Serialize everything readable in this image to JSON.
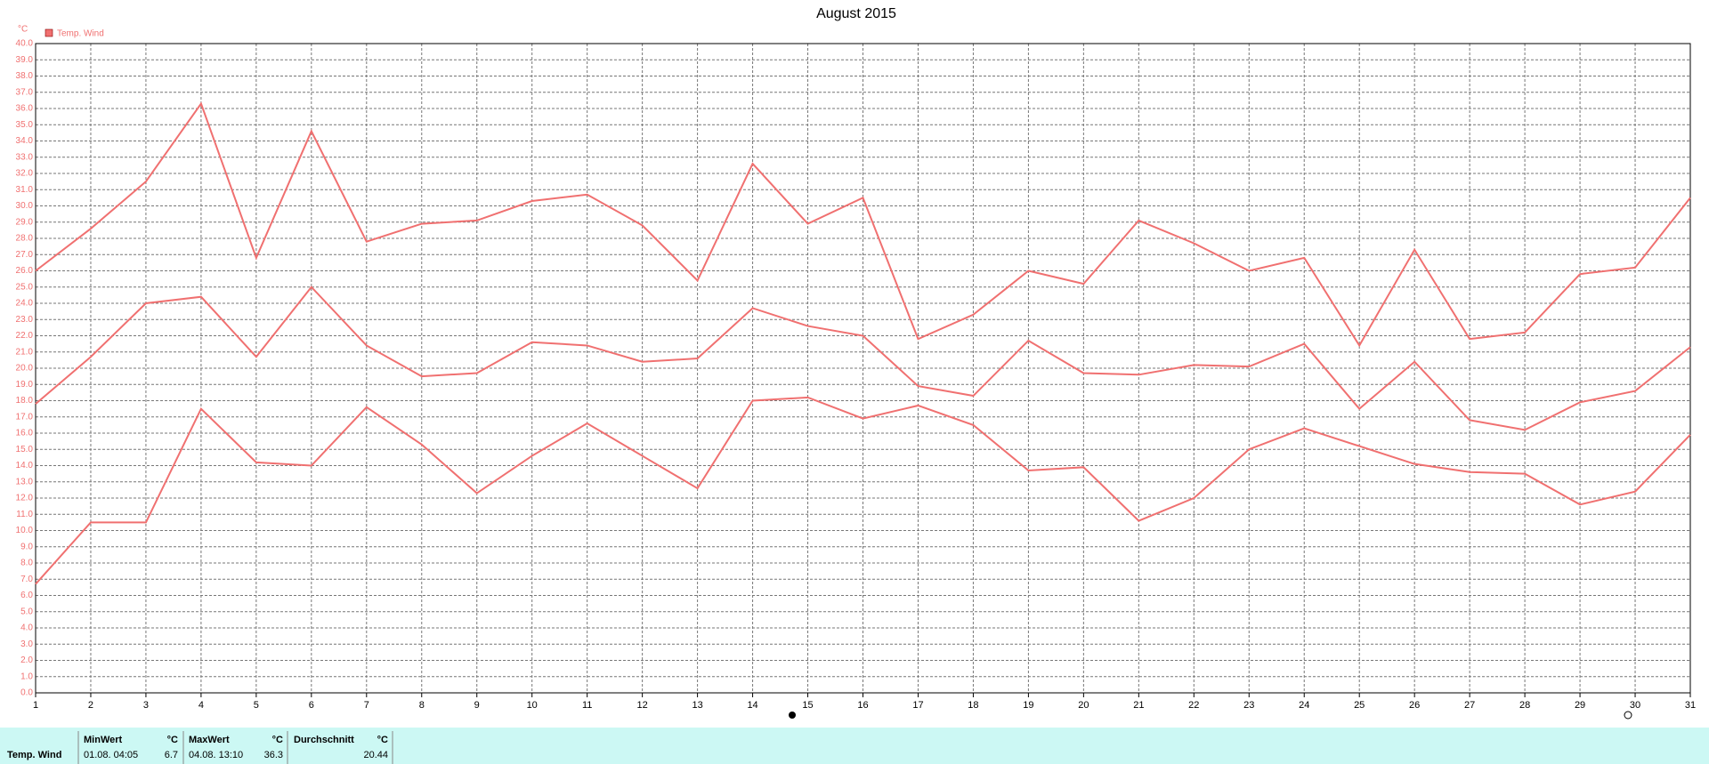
{
  "chart_data": {
    "type": "line",
    "title": "August 2015",
    "y_label": "°C",
    "legend": "Temp. Wind",
    "color": "#f07070",
    "grid": true,
    "x": [
      1,
      2,
      3,
      4,
      5,
      6,
      7,
      8,
      9,
      10,
      11,
      12,
      13,
      14,
      15,
      16,
      17,
      18,
      19,
      20,
      21,
      22,
      23,
      24,
      25,
      26,
      27,
      28,
      29,
      30,
      31
    ],
    "xlim": [
      1,
      31
    ],
    "xticks": [
      1,
      2,
      3,
      4,
      5,
      6,
      7,
      8,
      9,
      10,
      11,
      12,
      13,
      14,
      15,
      16,
      17,
      18,
      19,
      20,
      21,
      22,
      23,
      24,
      25,
      26,
      27,
      28,
      29,
      30,
      31
    ],
    "ylim": [
      0,
      40
    ],
    "yticks": [
      {
        "value": 0,
        "label": "0.0"
      },
      {
        "value": 1,
        "label": "1.0"
      },
      {
        "value": 2,
        "label": "2.0"
      },
      {
        "value": 3,
        "label": "3.0"
      },
      {
        "value": 4,
        "label": "4.0"
      },
      {
        "value": 5,
        "label": "5.0"
      },
      {
        "value": 6,
        "label": "6.0"
      },
      {
        "value": 7,
        "label": "7.0"
      },
      {
        "value": 8,
        "label": "8.0"
      },
      {
        "value": 9,
        "label": "9.0"
      },
      {
        "value": 10,
        "label": "10.0"
      },
      {
        "value": 11,
        "label": "11.0"
      },
      {
        "value": 12,
        "label": "12.0"
      },
      {
        "value": 13,
        "label": "13.0"
      },
      {
        "value": 14,
        "label": "14.0"
      },
      {
        "value": 15,
        "label": "15.0"
      },
      {
        "value": 16,
        "label": "16.0"
      },
      {
        "value": 17,
        "label": "17.0"
      },
      {
        "value": 18,
        "label": "18.0"
      },
      {
        "value": 19,
        "label": "19.0"
      },
      {
        "value": 20,
        "label": "20.0"
      },
      {
        "value": 21,
        "label": "21.0"
      },
      {
        "value": 22,
        "label": "22.0"
      },
      {
        "value": 23,
        "label": "23.0"
      },
      {
        "value": 24,
        "label": "24.0"
      },
      {
        "value": 25,
        "label": "25.0"
      },
      {
        "value": 26,
        "label": "26.0"
      },
      {
        "value": 27,
        "label": "27.0"
      },
      {
        "value": 28,
        "label": "28.0"
      },
      {
        "value": 29,
        "label": "29.0"
      },
      {
        "value": 30,
        "label": "30.0"
      },
      {
        "value": 31,
        "label": "31.0"
      },
      {
        "value": 32,
        "label": "32.0"
      },
      {
        "value": 33,
        "label": "33.0"
      },
      {
        "value": 34,
        "label": "34.0"
      },
      {
        "value": 35,
        "label": "35.0"
      },
      {
        "value": 36,
        "label": "36.0"
      },
      {
        "value": 37,
        "label": "37.0"
      },
      {
        "value": 38,
        "label": "38.0"
      },
      {
        "value": 39,
        "label": "39.0"
      },
      {
        "value": 40,
        "label": "40.0"
      }
    ],
    "series": [
      {
        "color": "#f07070",
        "values": [
          26.0,
          28.6,
          31.5,
          36.3,
          26.8,
          34.6,
          27.8,
          28.9,
          29.1,
          30.3,
          30.7,
          28.8,
          25.4,
          32.6,
          28.9,
          30.5,
          21.8,
          23.3,
          26.0,
          25.2,
          29.1,
          27.7,
          26.0,
          26.8,
          21.4,
          27.3,
          21.8,
          22.2,
          25.8,
          26.2,
          30.5
        ]
      },
      {
        "color": "#f07070",
        "values": [
          17.8,
          20.7,
          24.0,
          24.4,
          20.7,
          25.0,
          21.4,
          19.5,
          19.7,
          21.6,
          21.4,
          20.4,
          20.6,
          23.7,
          22.6,
          22.0,
          18.9,
          18.3,
          21.7,
          19.7,
          19.6,
          20.2,
          20.1,
          21.5,
          17.5,
          20.4,
          16.8,
          16.2,
          17.9,
          18.6,
          21.3
        ]
      },
      {
        "color": "#f07070",
        "values": [
          6.7,
          10.5,
          10.5,
          17.5,
          14.2,
          14.0,
          17.6,
          15.3,
          12.3,
          14.6,
          16.6,
          14.6,
          12.6,
          18.0,
          18.2,
          16.9,
          17.7,
          16.5,
          13.7,
          13.9,
          10.6,
          12.0,
          15.0,
          16.3,
          15.2,
          14.1,
          13.6,
          13.5,
          11.6,
          12.4,
          15.9
        ]
      }
    ]
  },
  "table": {
    "header": [
      "MinWert",
      "°C",
      "MaxWert",
      "°C",
      "Durchschnitt",
      "°C"
    ],
    "rows": [
      [
        "Temp. Wind",
        "01.08.  04:05",
        "6.7",
        "04.08.  13:10",
        "36.3",
        "20.44"
      ]
    ]
  }
}
